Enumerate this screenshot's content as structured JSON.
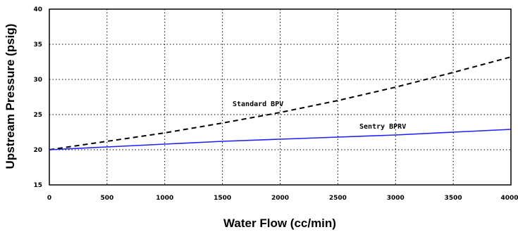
{
  "chart_data": {
    "type": "line",
    "xlabel": "Water Flow (cc/min)",
    "ylabel": "Upstream Pressure (psig)",
    "xlim": [
      0,
      4000
    ],
    "ylim": [
      15,
      40
    ],
    "x_ticks": [
      "0",
      "500",
      "1000",
      "1500",
      "2000",
      "2500",
      "3000",
      "3500",
      "4000"
    ],
    "y_ticks": [
      "15",
      "20",
      "25",
      "30",
      "35",
      "40"
    ],
    "grid": true,
    "series": [
      {
        "name": "Standard BPV",
        "style": "dashed",
        "color": "#000000",
        "x": [
          0,
          500,
          1000,
          1500,
          2000,
          2500,
          3000,
          3500,
          4000
        ],
        "values": [
          20.0,
          21.2,
          22.4,
          23.8,
          25.3,
          27.0,
          28.9,
          31.0,
          33.2
        ]
      },
      {
        "name": "Sentry BPRV",
        "style": "solid",
        "color": "#2020ff",
        "x": [
          0,
          500,
          1000,
          1500,
          2000,
          2500,
          3000,
          3500,
          4000
        ],
        "values": [
          20.0,
          20.4,
          20.8,
          21.2,
          21.5,
          21.8,
          22.1,
          22.5,
          22.9
        ]
      }
    ]
  }
}
